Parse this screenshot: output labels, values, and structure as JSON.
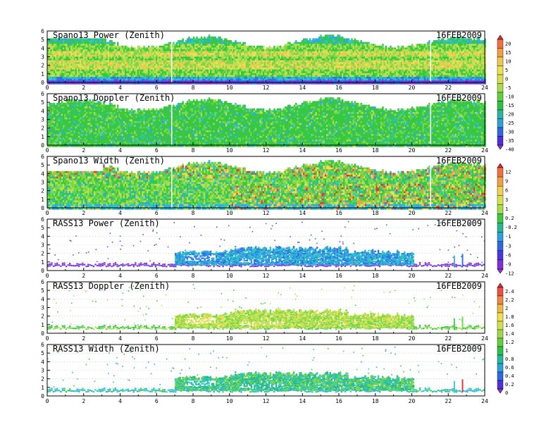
{
  "chart_data": [
    {
      "type": "heatmap",
      "title": "Spano13 Power (Zenith)",
      "date": "16FEB2009",
      "x_ticks": [
        "0",
        "2",
        "4",
        "6",
        "8",
        "10",
        "12",
        "14",
        "16",
        "18",
        "20",
        "22",
        "24"
      ],
      "y_ticks": [
        "0",
        "1",
        "2",
        "3",
        "4",
        "5",
        "6"
      ],
      "xlim": [
        0,
        24
      ],
      "ylim": [
        0,
        6
      ],
      "colorbar": "power",
      "pattern": "spano_power"
    },
    {
      "type": "heatmap",
      "title": "Spano13 Doppler (Zenith)",
      "date": "16FEB2009",
      "x_ticks": [
        "0",
        "2",
        "4",
        "6",
        "8",
        "10",
        "12",
        "14",
        "16",
        "18",
        "20",
        "22",
        "24"
      ],
      "y_ticks": [
        "0",
        "1",
        "2",
        "3",
        "4",
        "5",
        "6"
      ],
      "xlim": [
        0,
        24
      ],
      "ylim": [
        0,
        6
      ],
      "colorbar": "power",
      "pattern": "spano_doppler"
    },
    {
      "type": "heatmap",
      "title": "Spano13 Width (Zenith)",
      "date": "16FEB2009",
      "x_ticks": [
        "0",
        "2",
        "4",
        "6",
        "8",
        "10",
        "12",
        "14",
        "16",
        "18",
        "20",
        "22",
        "24"
      ],
      "y_ticks": [
        "0",
        "1",
        "2",
        "3",
        "4",
        "5",
        "6"
      ],
      "xlim": [
        0,
        24
      ],
      "ylim": [
        0,
        6
      ],
      "colorbar": "width",
      "pattern": "spano_width"
    },
    {
      "type": "heatmap",
      "title": "RASS13 Power (Zenith)",
      "date": "16FEB2009",
      "x_ticks": [
        "0",
        "2",
        "4",
        "6",
        "8",
        "10",
        "12",
        "14",
        "16",
        "18",
        "20",
        "22",
        "24"
      ],
      "y_ticks": [
        "0",
        "1",
        "2",
        "3",
        "4",
        "5",
        "6"
      ],
      "xlim": [
        0,
        24
      ],
      "ylim": [
        0,
        6
      ],
      "colorbar": "width",
      "pattern": "rass_power"
    },
    {
      "type": "heatmap",
      "title": "RASS13 Doppler (Zenith)",
      "date": "16FEB2009",
      "x_ticks": [
        "0",
        "2",
        "4",
        "6",
        "8",
        "10",
        "12",
        "14",
        "16",
        "18",
        "20",
        "22",
        "24"
      ],
      "y_ticks": [
        "0",
        "1",
        "2",
        "3",
        "4",
        "5",
        "6"
      ],
      "xlim": [
        0,
        24
      ],
      "ylim": [
        0,
        6
      ],
      "colorbar": "rass",
      "pattern": "rass_doppler"
    },
    {
      "type": "heatmap",
      "title": "RASS13 Width (Zenith)",
      "date": "16FEB2009",
      "x_ticks": [
        "0",
        "2",
        "4",
        "6",
        "8",
        "10",
        "12",
        "14",
        "16",
        "18",
        "20",
        "22",
        "24"
      ],
      "y_ticks": [
        "0",
        "1",
        "2",
        "3",
        "4",
        "5",
        "6"
      ],
      "xlim": [
        0,
        24
      ],
      "ylim": [
        0,
        6
      ],
      "colorbar": "rass",
      "pattern": "rass_width"
    }
  ],
  "colorbars": {
    "power": {
      "labels": [
        "20",
        "15",
        "10",
        "5",
        "0",
        "-5",
        "-10",
        "-15",
        "-20",
        "-25",
        "-30",
        "-35",
        "-40"
      ],
      "colors": [
        "#e8283c",
        "#f07040",
        "#f0a040",
        "#f0c850",
        "#f0e050",
        "#d8e050",
        "#a8dc48",
        "#60d040",
        "#30c048",
        "#28b8a0",
        "#30a0d8",
        "#3068e0",
        "#5030d8",
        "#9030d8"
      ]
    },
    "width": {
      "labels": [
        "12",
        "9",
        "6",
        "3",
        "1",
        "0.2",
        "-0.2",
        "-1",
        "-3",
        "-6",
        "-9",
        "-12"
      ],
      "colors": [
        "#e8283c",
        "#f07040",
        "#f0a040",
        "#f0d050",
        "#d8e050",
        "#a8dc48",
        "#40c840",
        "#28b890",
        "#30a0d8",
        "#3068e0",
        "#4838e0",
        "#8030d8",
        "#a030d8"
      ]
    },
    "rass": {
      "labels": [
        "2.4",
        "2.2",
        "2",
        "1.8",
        "1.6",
        "1.4",
        "1.2",
        "1",
        "0.8",
        "0.6",
        "0.4",
        "0.2",
        "0"
      ],
      "colors": [
        "#e8283c",
        "#f05040",
        "#f08840",
        "#f0b848",
        "#f0e050",
        "#d0e050",
        "#a0d848",
        "#60d040",
        "#30c048",
        "#28b8a0",
        "#30a0d8",
        "#3068e0",
        "#5030d8",
        "#9030d8"
      ]
    }
  }
}
